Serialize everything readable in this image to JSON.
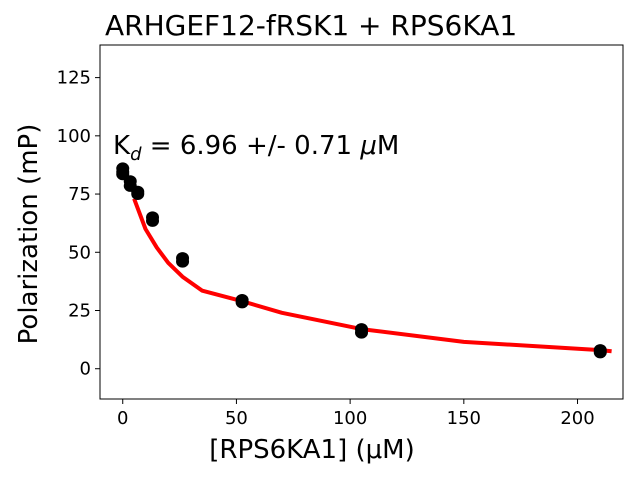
{
  "chart_data": {
    "type": "scatter",
    "title": "ARHGEF12-fRSK1 + RPS6KA1",
    "xlabel": "[RPS6KA1] (μM)",
    "ylabel": "Polarization (mP)",
    "xlim": [
      -10,
      220
    ],
    "ylim": [
      -13,
      139
    ],
    "xticks": [
      0,
      50,
      100,
      150,
      200
    ],
    "yticks": [
      0,
      25,
      50,
      75,
      100,
      125
    ],
    "grid": false,
    "annotation": {
      "prefix": "K",
      "subscript": "d",
      "text": " = 6.96 +/- 0.71 ",
      "unit_symbol": "μ",
      "unit": "M"
    },
    "series": [
      {
        "type": "scatter",
        "color": "#000000",
        "points": [
          {
            "x": 0,
            "y": 86
          },
          {
            "x": 0,
            "y": 84.5
          },
          {
            "x": 0,
            "y": 83.5
          },
          {
            "x": 3.3,
            "y": 80.5
          },
          {
            "x": 3.3,
            "y": 78.5
          },
          {
            "x": 6.6,
            "y": 76
          },
          {
            "x": 6.6,
            "y": 75
          },
          {
            "x": 13.1,
            "y": 65
          },
          {
            "x": 13.1,
            "y": 63.5
          },
          {
            "x": 26.3,
            "y": 47.5
          },
          {
            "x": 26.3,
            "y": 46
          },
          {
            "x": 52.5,
            "y": 29.5
          },
          {
            "x": 52.5,
            "y": 28.5
          },
          {
            "x": 105,
            "y": 17
          },
          {
            "x": 105,
            "y": 15.5
          },
          {
            "x": 210,
            "y": 8
          },
          {
            "x": 210,
            "y": 7
          }
        ]
      },
      {
        "type": "line",
        "color": "#ff0000",
        "x": [
          5,
          10,
          15,
          20,
          26.3,
          35,
          52.5,
          70,
          105,
          150,
          210,
          215
        ],
        "y": [
          73,
          60,
          52,
          45.5,
          39.5,
          33.5,
          29,
          24,
          17,
          11.5,
          8,
          7.5
        ]
      }
    ]
  }
}
